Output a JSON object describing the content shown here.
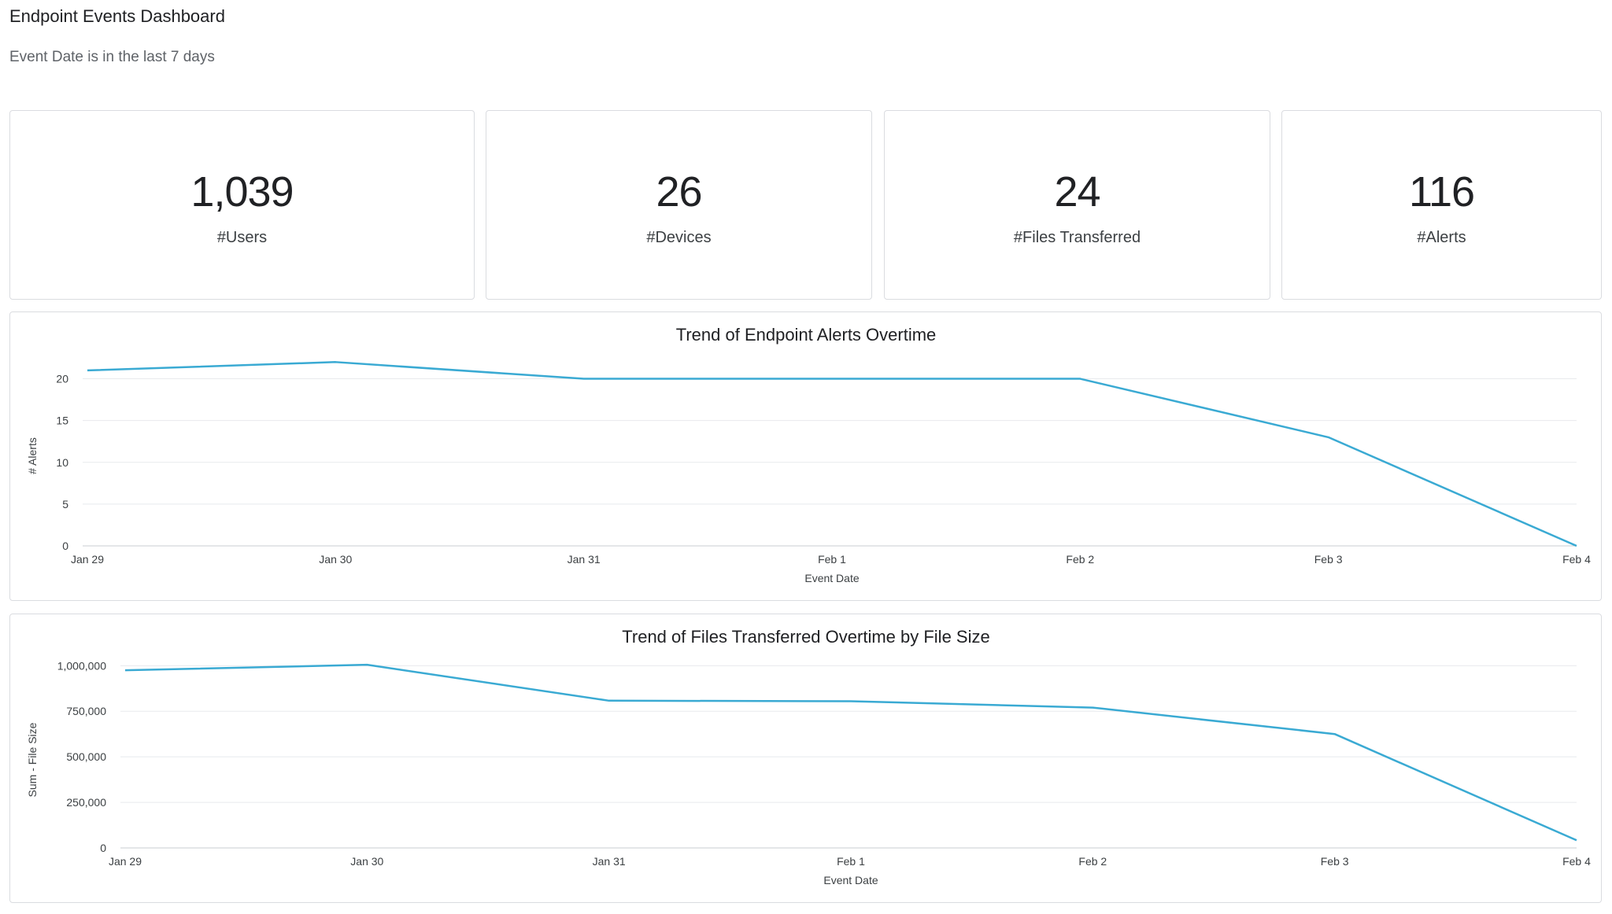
{
  "header": {
    "title": "Endpoint Events Dashboard",
    "filter": "Event Date is in the last 7 days"
  },
  "kpis": [
    {
      "value": "1,039",
      "label": "#Users"
    },
    {
      "value": "26",
      "label": "#Devices"
    },
    {
      "value": "24",
      "label": "#Files Transferred"
    },
    {
      "value": "116",
      "label": "#Alerts"
    }
  ],
  "colors": {
    "line": "#3aaad3",
    "grid": "#e8eaed",
    "text": "#3c4043"
  },
  "chart_data": [
    {
      "type": "line",
      "title": "Trend of Endpoint Alerts Overtime",
      "xlabel": "Event Date",
      "ylabel": "# Alerts",
      "categories": [
        "Jan 29",
        "Jan 30",
        "Jan 31",
        "Feb 1",
        "Feb 2",
        "Feb 3",
        "Feb 4"
      ],
      "series": [
        {
          "name": "# Alerts",
          "values": [
            21,
            22,
            20,
            20,
            20,
            13,
            0
          ]
        }
      ],
      "yticks": [
        0,
        5,
        10,
        15,
        20
      ],
      "ytick_labels": [
        "0",
        "5",
        "10",
        "15",
        "20"
      ],
      "ylim": [
        0,
        22.5
      ],
      "grid": true
    },
    {
      "type": "line",
      "title": "Trend of Files Transferred Overtime by File Size",
      "xlabel": "Event Date",
      "ylabel": "Sum - File Size",
      "categories": [
        "Jan 29",
        "Jan 30",
        "Jan 31",
        "Feb 1",
        "Feb 2",
        "Feb 3",
        "Feb 4"
      ],
      "series": [
        {
          "name": "Sum - File Size",
          "values": [
            975000,
            1005000,
            808000,
            805000,
            770000,
            625000,
            42000
          ]
        }
      ],
      "yticks": [
        0,
        250000,
        500000,
        750000,
        1000000
      ],
      "ytick_labels": [
        "0",
        "250,000",
        "500,000",
        "750,000",
        "1,000,000"
      ],
      "ylim": [
        0,
        1010000
      ],
      "grid": true
    }
  ]
}
